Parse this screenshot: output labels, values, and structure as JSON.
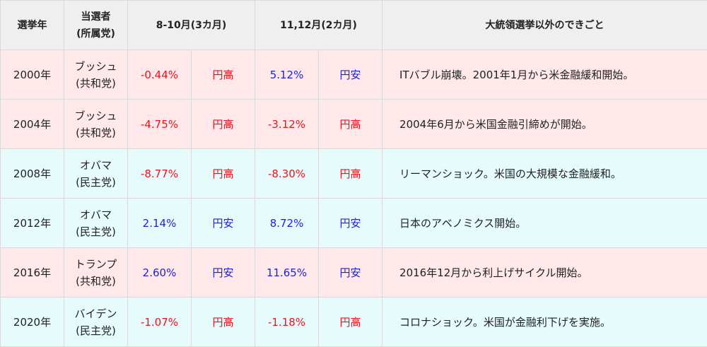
{
  "table": {
    "headers": {
      "year": "選挙年",
      "winner_line1": "当選者",
      "winner_line2": "(所属党)",
      "aug_oct": "8-10月(3カ月)",
      "nov_dec": "11,12月(2カ月)",
      "events": "大統領選挙以外のできごと"
    },
    "rows": [
      {
        "year": "2000年",
        "name": "ブッシュ",
        "party": "(共和党)",
        "p1": "-0.44%",
        "j1": "円高",
        "p2": "5.12%",
        "j2": "円安",
        "event": "ITバブル崩壊。2001年1月から米金融緩和開始。"
      },
      {
        "year": "2004年",
        "name": "ブッシュ",
        "party": "(共和党)",
        "p1": "-4.75%",
        "j1": "円高",
        "p2": "-3.12%",
        "j2": "円高",
        "event": "2004年6月から米国金融引締めが開始。"
      },
      {
        "year": "2008年",
        "name": "オバマ",
        "party": "(民主党)",
        "p1": "-8.77%",
        "j1": "円高",
        "p2": "-8.30%",
        "j2": "円高",
        "event": "リーマンショック。米国の大規模な金融緩和。"
      },
      {
        "year": "2012年",
        "name": "オバマ",
        "party": "(民主党)",
        "p1": "2.14%",
        "j1": "円安",
        "p2": "8.72%",
        "j2": "円安",
        "event": "日本のアベノミクス開始。"
      },
      {
        "year": "2016年",
        "name": "トランプ",
        "party": "(共和党)",
        "p1": "2.60%",
        "j1": "円安",
        "p2": "11.65%",
        "j2": "円安",
        "event": "2016年12月から利上げサイクル開始。"
      },
      {
        "year": "2020年",
        "name": "バイデン",
        "party": "(民主党)",
        "p1": "-1.07%",
        "j1": "円高",
        "p2": "-1.18%",
        "j2": "円高",
        "event": "コロナショック。米国が金融利下げを実施。"
      }
    ]
  }
}
